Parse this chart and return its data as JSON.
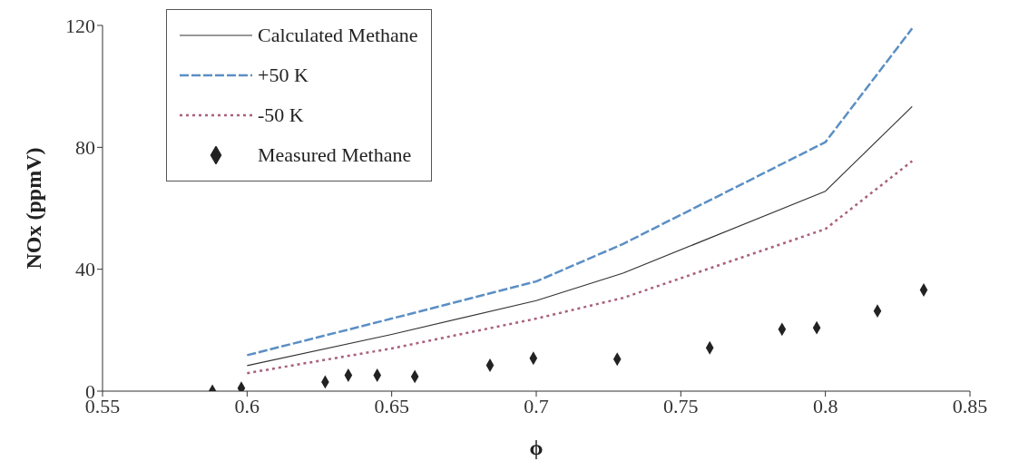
{
  "chart_data": {
    "type": "line",
    "xlabel": "ϕ",
    "ylabel": "NOx (ppmV)",
    "xlim": [
      0.55,
      0.85
    ],
    "xticks": [
      0.55,
      0.6,
      0.65,
      0.7,
      0.75,
      0.8,
      0.85
    ],
    "ylim": [
      0,
      120
    ],
    "yticks": [
      0,
      40,
      80,
      120
    ],
    "grid": false,
    "legend": "top left",
    "series": [
      {
        "name": "Calculated Methane",
        "type": "line",
        "color": "#333333",
        "line_style": "solid",
        "marker": "none",
        "x": [
          0.6,
          0.65,
          0.7,
          0.73,
          0.8,
          0.83
        ],
        "values": [
          8.4,
          18.6,
          29.7,
          38.7,
          65.6,
          93.4
        ]
      },
      {
        "name": "+50 K",
        "type": "line",
        "color": "#5b8fc4",
        "line_style": "dashed",
        "marker": "none",
        "x": [
          0.6,
          0.65,
          0.7,
          0.73,
          0.8,
          0.83
        ],
        "values": [
          11.8,
          23.8,
          36,
          48.3,
          81.7,
          119
        ]
      },
      {
        "name": "-50 K",
        "type": "line",
        "color": "#a8607e",
        "line_style": "dotted",
        "marker": "none",
        "x": [
          0.6,
          0.65,
          0.7,
          0.73,
          0.8,
          0.83
        ],
        "values": [
          5.9,
          14,
          23.8,
          30.6,
          53.2,
          75.5
        ]
      },
      {
        "name": "Measured Methane",
        "type": "scatter",
        "color": "#222222",
        "marker": "diamond",
        "x": [
          0.588,
          0.598,
          0.627,
          0.635,
          0.645,
          0.658,
          0.684,
          0.699,
          0.728,
          0.76,
          0.785,
          0.797,
          0.818,
          0.834
        ],
        "values": [
          0,
          1,
          3,
          5.2,
          5.2,
          4.8,
          8.5,
          10.8,
          10.5,
          14.2,
          20.3,
          20.8,
          26.3,
          33.2
        ]
      }
    ]
  }
}
